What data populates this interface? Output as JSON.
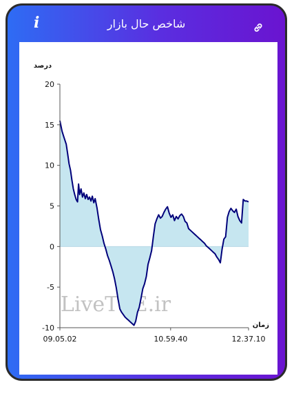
{
  "header": {
    "title": "شاخص حال بازار",
    "info_icon": "info-icon",
    "link_icon": "link-icon"
  },
  "watermark": "LiveTSE.ir",
  "chart_data": {
    "type": "area",
    "ylabel": "درصد",
    "xlabel": "زمان",
    "ylim": [
      -10,
      20
    ],
    "yticks": [
      20,
      15,
      10,
      5,
      0,
      -5,
      -10
    ],
    "xticks": [
      "09.05.02",
      "10.59.40",
      "12.37.10"
    ],
    "grid": false,
    "points": [
      [
        0,
        15.5
      ],
      [
        0.6,
        14.2
      ],
      [
        1.2,
        13.4
      ],
      [
        1.8,
        12.6
      ],
      [
        2.2,
        11.4
      ],
      [
        2.6,
        10.2
      ],
      [
        3,
        9.4
      ],
      [
        3.4,
        8.2
      ],
      [
        3.8,
        7.1
      ],
      [
        4.2,
        6.4
      ],
      [
        4.6,
        5.8
      ],
      [
        5,
        5.5
      ],
      [
        5.3,
        7.7
      ],
      [
        5.6,
        6.4
      ],
      [
        6,
        7.1
      ],
      [
        6.4,
        6.1
      ],
      [
        6.8,
        6.6
      ],
      [
        7.2,
        5.9
      ],
      [
        7.6,
        6.4
      ],
      [
        8,
        5.8
      ],
      [
        8.4,
        6.1
      ],
      [
        8.8,
        5.6
      ],
      [
        9.2,
        6.2
      ],
      [
        9.6,
        5.4
      ],
      [
        10,
        5.9
      ],
      [
        10.5,
        4.8
      ],
      [
        11,
        3.4
      ],
      [
        11.5,
        2.1
      ],
      [
        12,
        1.3
      ],
      [
        12.5,
        0.4
      ],
      [
        13,
        -0.3
      ],
      [
        13.5,
        -1.1
      ],
      [
        14,
        -1.7
      ],
      [
        14.5,
        -2.4
      ],
      [
        15,
        -3.1
      ],
      [
        15.5,
        -4.0
      ],
      [
        16,
        -5.1
      ],
      [
        16.5,
        -6.5
      ],
      [
        17,
        -7.7
      ],
      [
        17.5,
        -8.1
      ],
      [
        18,
        -8.4
      ],
      [
        18.5,
        -8.7
      ],
      [
        19,
        -8.9
      ],
      [
        19.5,
        -9.1
      ],
      [
        20,
        -9.3
      ],
      [
        20.5,
        -9.5
      ],
      [
        21,
        -9.7
      ],
      [
        21.5,
        -9.2
      ],
      [
        22,
        -8.1
      ],
      [
        22.5,
        -7.5
      ],
      [
        23,
        -6.4
      ],
      [
        23.5,
        -5.2
      ],
      [
        24,
        -4.6
      ],
      [
        24.5,
        -3.7
      ],
      [
        25,
        -2.2
      ],
      [
        25.5,
        -1.4
      ],
      [
        26,
        -0.5
      ],
      [
        26.5,
        1.2
      ],
      [
        27,
        2.8
      ],
      [
        27.5,
        3.4
      ],
      [
        28,
        3.9
      ],
      [
        28.5,
        3.5
      ],
      [
        29,
        3.7
      ],
      [
        29.5,
        4.2
      ],
      [
        30,
        4.6
      ],
      [
        30.5,
        4.9
      ],
      [
        31,
        4.1
      ],
      [
        31.5,
        3.6
      ],
      [
        32,
        3.9
      ],
      [
        32.5,
        3.2
      ],
      [
        33,
        3.7
      ],
      [
        33.5,
        3.4
      ],
      [
        34,
        3.8
      ],
      [
        34.5,
        4.0
      ],
      [
        35,
        3.7
      ],
      [
        35.5,
        3.1
      ],
      [
        36,
        2.9
      ],
      [
        36.5,
        2.2
      ],
      [
        37,
        2.0
      ],
      [
        37.5,
        1.8
      ],
      [
        38,
        1.6
      ],
      [
        38.5,
        1.4
      ],
      [
        39,
        1.2
      ],
      [
        39.5,
        1.0
      ],
      [
        40,
        0.8
      ],
      [
        40.5,
        0.6
      ],
      [
        41,
        0.4
      ],
      [
        41.5,
        0.1
      ],
      [
        42,
        -0.1
      ],
      [
        42.5,
        -0.3
      ],
      [
        43,
        -0.5
      ],
      [
        43.5,
        -0.7
      ],
      [
        44,
        -0.9
      ],
      [
        44.5,
        -1.3
      ],
      [
        45,
        -1.6
      ],
      [
        45.5,
        -2.0
      ],
      [
        46,
        -0.3
      ],
      [
        46.5,
        0.9
      ],
      [
        47,
        1.2
      ],
      [
        47.5,
        3.6
      ],
      [
        48,
        4.3
      ],
      [
        48.5,
        4.7
      ],
      [
        49,
        4.4
      ],
      [
        49.5,
        4.2
      ],
      [
        50,
        4.6
      ],
      [
        50.5,
        3.7
      ],
      [
        51,
        3.2
      ],
      [
        51.5,
        2.9
      ],
      [
        52,
        5.8
      ],
      [
        52.5,
        5.6
      ],
      [
        53,
        5.6
      ],
      [
        53.5,
        5.5
      ]
    ],
    "x_range": [
      0,
      53.5
    ],
    "xtick_positions": [
      0,
      31.4,
      53.5
    ]
  },
  "colors": {
    "line": "#00007a",
    "fill": "#c6e6f0",
    "axis": "#555555",
    "text": "#111111",
    "watermark": "#bfbfbf"
  }
}
